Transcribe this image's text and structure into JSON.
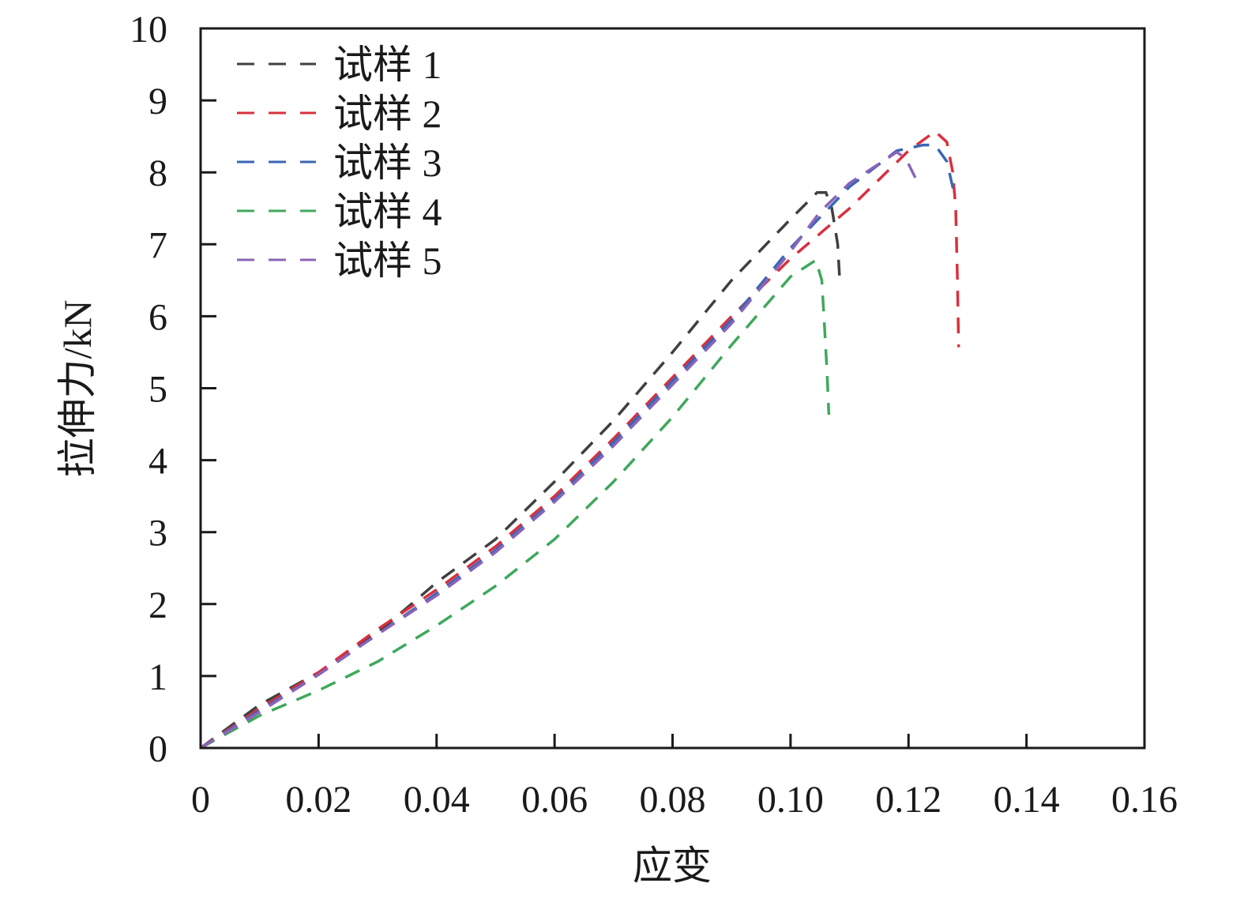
{
  "chart_data": {
    "type": "line",
    "title": "",
    "xlabel": "应变",
    "ylabel": "拉伸力/kN",
    "xlim": [
      0,
      0.16
    ],
    "ylim": [
      0,
      10
    ],
    "xticks": [
      "0",
      "0.02",
      "0.04",
      "0.06",
      "0.08",
      "0.10",
      "0.12",
      "0.14",
      "0.16"
    ],
    "xtick_values": [
      0,
      0.02,
      0.04,
      0.06,
      0.08,
      0.1,
      0.12,
      0.14,
      0.16
    ],
    "yticks": [
      "0",
      "1",
      "2",
      "3",
      "4",
      "5",
      "6",
      "7",
      "8",
      "9",
      "10"
    ],
    "ytick_values": [
      0,
      1,
      2,
      3,
      4,
      5,
      6,
      7,
      8,
      9,
      10
    ],
    "grid": false,
    "legend_position": "top-left",
    "series": [
      {
        "name": "试样 1",
        "color": "#404040",
        "x": [
          0,
          0.01,
          0.02,
          0.03,
          0.04,
          0.05,
          0.06,
          0.07,
          0.08,
          0.09,
          0.1,
          0.1045,
          0.106,
          0.107,
          0.108,
          0.1083
        ],
        "y": [
          0,
          0.6,
          1.05,
          1.6,
          2.3,
          2.9,
          3.7,
          4.55,
          5.5,
          6.5,
          7.35,
          7.72,
          7.72,
          7.5,
          7.0,
          6.55
        ]
      },
      {
        "name": "试样 2",
        "color": "#d9303e",
        "x": [
          0,
          0.01,
          0.02,
          0.03,
          0.04,
          0.05,
          0.06,
          0.07,
          0.08,
          0.09,
          0.1,
          0.11,
          0.12,
          0.1245,
          0.1265,
          0.1275,
          0.128,
          0.1283,
          0.1285
        ],
        "y": [
          0,
          0.55,
          1.05,
          1.65,
          2.2,
          2.8,
          3.5,
          4.3,
          5.15,
          6.0,
          6.8,
          7.5,
          8.3,
          8.57,
          8.42,
          8.0,
          7.5,
          6.5,
          5.57
        ]
      },
      {
        "name": "试样 3",
        "color": "#3a66b5",
        "x": [
          0,
          0.01,
          0.02,
          0.03,
          0.04,
          0.05,
          0.06,
          0.07,
          0.08,
          0.09,
          0.1,
          0.11,
          0.118,
          0.1225,
          0.1245,
          0.1265,
          0.1277
        ],
        "y": [
          0,
          0.52,
          1.02,
          1.58,
          2.15,
          2.75,
          3.45,
          4.25,
          5.1,
          5.95,
          6.95,
          7.8,
          8.3,
          8.38,
          8.38,
          8.15,
          7.72
        ]
      },
      {
        "name": "试样 4",
        "color": "#3fa85c",
        "x": [
          0,
          0.01,
          0.02,
          0.03,
          0.04,
          0.05,
          0.06,
          0.07,
          0.08,
          0.09,
          0.1,
          0.1043,
          0.1053,
          0.1058,
          0.1062,
          0.1065
        ],
        "y": [
          0,
          0.45,
          0.8,
          1.2,
          1.7,
          2.25,
          2.9,
          3.7,
          4.6,
          5.6,
          6.55,
          6.78,
          6.5,
          5.8,
          5.2,
          4.63
        ]
      },
      {
        "name": "试样 5",
        "color": "#8a64b8",
        "x": [
          0,
          0.01,
          0.02,
          0.03,
          0.04,
          0.05,
          0.06,
          0.07,
          0.08,
          0.09,
          0.1,
          0.105,
          0.11,
          0.118,
          0.1195,
          0.1213
        ],
        "y": [
          0,
          0.5,
          1.02,
          1.58,
          2.12,
          2.72,
          3.42,
          4.2,
          5.05,
          5.9,
          6.9,
          7.45,
          7.85,
          8.28,
          8.2,
          7.9
        ]
      }
    ]
  }
}
